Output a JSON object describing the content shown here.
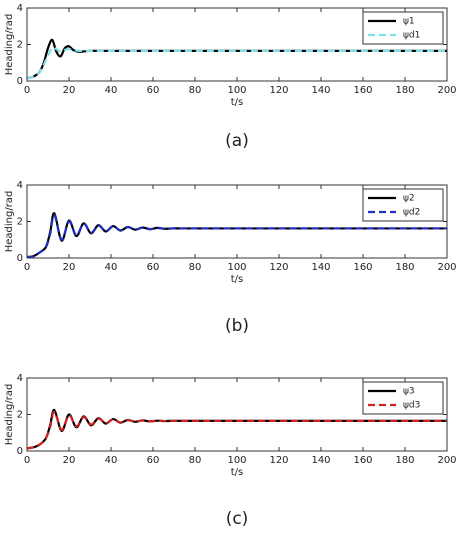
{
  "chart_data": [
    {
      "type": "line",
      "caption": "(a)",
      "xlabel": "t/s",
      "ylabel": "Heading/rad",
      "x": [
        0,
        2,
        4,
        6,
        8,
        10,
        12,
        14,
        16,
        18,
        20,
        22,
        25,
        30,
        40,
        60,
        80,
        100,
        120,
        140,
        160,
        180,
        200
      ],
      "series": [
        {
          "name": "ψ1",
          "color": "#000000",
          "dash": false,
          "values": [
            0.15,
            0.2,
            0.3,
            0.5,
            1.0,
            1.8,
            2.25,
            1.6,
            1.35,
            1.8,
            1.9,
            1.7,
            1.6,
            1.65,
            1.65,
            1.65,
            1.65,
            1.65,
            1.65,
            1.65,
            1.65,
            1.65,
            1.65
          ]
        },
        {
          "name": "ψd1",
          "color": "#7fe0e8",
          "dash": true,
          "values": [
            0.15,
            0.2,
            0.3,
            0.5,
            0.9,
            1.4,
            1.8,
            1.75,
            1.6,
            1.7,
            1.75,
            1.7,
            1.65,
            1.65,
            1.65,
            1.65,
            1.65,
            1.65,
            1.65,
            1.65,
            1.65,
            1.65,
            1.65
          ]
        }
      ],
      "xlim": [
        0,
        200
      ],
      "ylim": [
        0,
        4
      ],
      "xticks": [
        0,
        20,
        40,
        60,
        80,
        100,
        120,
        140,
        160,
        180,
        200
      ],
      "yticks": [
        0,
        2,
        4
      ],
      "legend": "northeast"
    },
    {
      "type": "line",
      "caption": "(b)",
      "xlabel": "t/s",
      "ylabel": "Heading/rad",
      "x": [
        0,
        3,
        6,
        9,
        11,
        13,
        16.5,
        20,
        23.5,
        27,
        30.5,
        34,
        37.5,
        41,
        44.5,
        48,
        51.5,
        55,
        58.5,
        62,
        65.5,
        69,
        75,
        80,
        100,
        120,
        140,
        160,
        180,
        200
      ],
      "series": [
        {
          "name": "ψ2",
          "color": "#000000",
          "dash": false,
          "values": [
            0.05,
            0.1,
            0.3,
            0.6,
            1.4,
            2.45,
            0.95,
            2.05,
            1.2,
            1.9,
            1.35,
            1.8,
            1.45,
            1.75,
            1.5,
            1.7,
            1.55,
            1.67,
            1.58,
            1.65,
            1.6,
            1.62,
            1.62,
            1.62,
            1.62,
            1.62,
            1.62,
            1.62,
            1.62,
            1.62
          ]
        },
        {
          "name": "ψd2",
          "color": "#1f2fc8",
          "dash": true,
          "values": [
            0.05,
            0.1,
            0.3,
            0.6,
            1.3,
            2.35,
            1.0,
            2.0,
            1.25,
            1.88,
            1.38,
            1.78,
            1.47,
            1.73,
            1.52,
            1.69,
            1.56,
            1.66,
            1.58,
            1.64,
            1.6,
            1.62,
            1.62,
            1.62,
            1.62,
            1.62,
            1.62,
            1.62,
            1.62,
            1.62
          ]
        }
      ],
      "xlim": [
        0,
        200
      ],
      "ylim": [
        0,
        4
      ],
      "xticks": [
        0,
        20,
        40,
        60,
        80,
        100,
        120,
        140,
        160,
        180,
        200
      ],
      "yticks": [
        0,
        2,
        4
      ],
      "legend": "northeast"
    },
    {
      "type": "line",
      "caption": "(c)",
      "xlabel": "t/s",
      "ylabel": "Heading/rad",
      "x": [
        0,
        3,
        6,
        9,
        11,
        13,
        16.5,
        20,
        23.5,
        27,
        30.5,
        34,
        37.5,
        41,
        44.5,
        48,
        51.5,
        55,
        58.5,
        62,
        65.5,
        69,
        75,
        80,
        100,
        120,
        140,
        160,
        180,
        200
      ],
      "series": [
        {
          "name": "ψ3",
          "color": "#000000",
          "dash": false,
          "values": [
            0.15,
            0.2,
            0.35,
            0.7,
            1.4,
            2.25,
            1.1,
            2.0,
            1.3,
            1.9,
            1.4,
            1.8,
            1.5,
            1.75,
            1.55,
            1.7,
            1.6,
            1.68,
            1.62,
            1.66,
            1.64,
            1.65,
            1.65,
            1.65,
            1.65,
            1.65,
            1.65,
            1.65,
            1.65,
            1.65
          ]
        },
        {
          "name": "ψd3",
          "color": "#d42020",
          "dash": true,
          "values": [
            0.15,
            0.2,
            0.35,
            0.7,
            1.3,
            2.15,
            1.15,
            1.95,
            1.35,
            1.86,
            1.45,
            1.78,
            1.52,
            1.73,
            1.57,
            1.69,
            1.61,
            1.67,
            1.63,
            1.66,
            1.64,
            1.65,
            1.65,
            1.65,
            1.65,
            1.65,
            1.65,
            1.65,
            1.65,
            1.65
          ]
        }
      ],
      "xlim": [
        0,
        200
      ],
      "ylim": [
        0,
        4
      ],
      "xticks": [
        0,
        20,
        40,
        60,
        80,
        100,
        120,
        140,
        160,
        180,
        200
      ],
      "yticks": [
        0,
        2,
        4
      ],
      "legend": "northeast"
    }
  ]
}
